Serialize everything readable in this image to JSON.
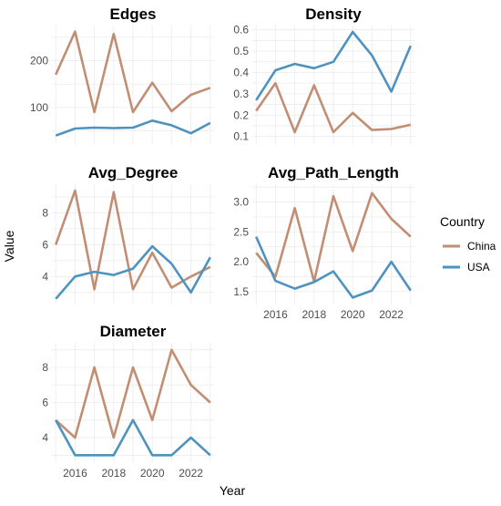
{
  "chart_data": {
    "type": "line",
    "xlabel": "Year",
    "ylabel": "Value",
    "grid": true,
    "legend": {
      "title": "Country",
      "placement": "right",
      "entries": [
        {
          "name": "China",
          "color": "#c28e73"
        },
        {
          "name": "USA",
          "color": "#4e93bf"
        }
      ]
    },
    "years": [
      2015,
      2016,
      2017,
      2018,
      2019,
      2020,
      2021,
      2022,
      2023
    ],
    "panels": [
      {
        "title": "Edges",
        "ylim": [
          20,
          275
        ],
        "yticks": [
          100,
          200
        ],
        "xticks": [],
        "series": [
          {
            "name": "China",
            "values": [
              170,
              262,
              90,
              257,
              90,
              153,
              92,
              127,
              142
            ]
          },
          {
            "name": "USA",
            "values": [
              40,
              55,
              57,
              56,
              57,
              72,
              62,
              45,
              67
            ]
          }
        ]
      },
      {
        "title": "Density",
        "ylim": [
          0.06,
          0.62
        ],
        "yticks": [
          0.1,
          0.2,
          0.3,
          0.4,
          0.5,
          0.6
        ],
        "xticks": [],
        "series": [
          {
            "name": "China",
            "values": [
              0.22,
              0.35,
              0.12,
              0.34,
              0.12,
              0.21,
              0.13,
              0.135,
              0.155
            ]
          },
          {
            "name": "USA",
            "values": [
              0.27,
              0.41,
              0.44,
              0.42,
              0.45,
              0.59,
              0.48,
              0.31,
              0.525
            ]
          }
        ]
      },
      {
        "title": "Avg_Degree",
        "ylim": [
          2.3,
          9.8
        ],
        "yticks": [
          4,
          6,
          8
        ],
        "xticks": [],
        "series": [
          {
            "name": "China",
            "values": [
              6.0,
              9.4,
              3.2,
              9.3,
              3.2,
              5.5,
              3.3,
              4.0,
              4.6
            ]
          },
          {
            "name": "USA",
            "values": [
              2.6,
              4.0,
              4.3,
              4.1,
              4.5,
              5.9,
              4.8,
              3.0,
              5.2
            ]
          }
        ]
      },
      {
        "title": "Avg_Path_Length",
        "ylim": [
          1.3,
          3.3
        ],
        "yticks": [
          1.5,
          2.0,
          2.5,
          3.0
        ],
        "xticks": [
          2016,
          2018,
          2020,
          2022
        ],
        "series": [
          {
            "name": "China",
            "values": [
              2.15,
              1.75,
              2.9,
              1.67,
              3.1,
              2.18,
              3.15,
              2.72,
              2.42
            ]
          },
          {
            "name": "USA",
            "values": [
              2.42,
              1.68,
              1.55,
              1.66,
              1.84,
              1.4,
              1.52,
              2.0,
              1.52
            ]
          }
        ]
      },
      {
        "title": "Diameter",
        "ylim": [
          2.6,
          9.4
        ],
        "yticks": [
          4,
          6,
          8
        ],
        "xticks": [
          2016,
          2018,
          2020,
          2022
        ],
        "series": [
          {
            "name": "China",
            "values": [
              5,
              4,
              8,
              4,
              8,
              5,
              9,
              7,
              6
            ]
          },
          {
            "name": "USA",
            "values": [
              5,
              3,
              3,
              3,
              5,
              3,
              3,
              4,
              3
            ]
          }
        ]
      }
    ]
  }
}
